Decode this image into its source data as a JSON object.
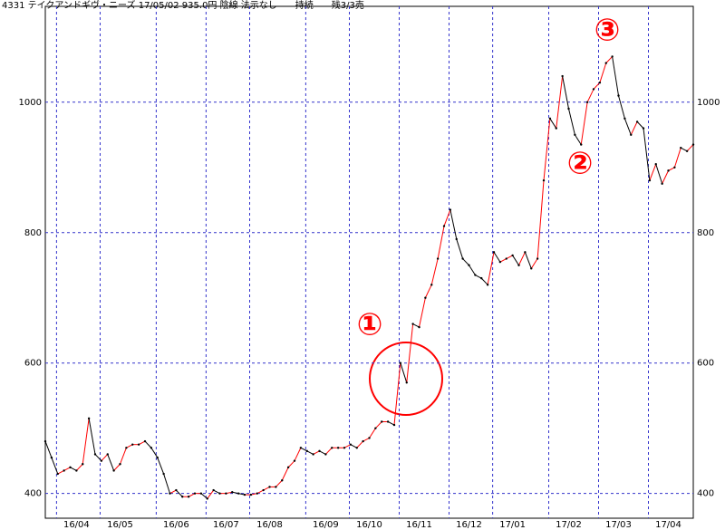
{
  "chart_data": {
    "type": "line",
    "title": "4331 テイクアンドギヴ・ニーズ 17/05/02 935.0円 陰線 法示なし　　持続　　残3/3売",
    "categories": [
      null,
      null,
      null,
      null,
      null,
      "16/04",
      null,
      null,
      null,
      null,
      null,
      null,
      "16/05",
      null,
      null,
      null,
      null,
      null,
      null,
      null,
      null,
      "16/06",
      null,
      null,
      null,
      null,
      null,
      null,
      null,
      "16/07",
      null,
      null,
      null,
      null,
      null,
      null,
      "16/08",
      null,
      null,
      null,
      null,
      null,
      null,
      null,
      null,
      "16/09",
      null,
      null,
      null,
      null,
      null,
      null,
      "16/10",
      null,
      null,
      null,
      null,
      null,
      null,
      null,
      "16/11",
      null,
      null,
      null,
      null,
      null,
      null,
      null,
      "16/12",
      null,
      null,
      null,
      null,
      null,
      null,
      "17/01",
      null,
      null,
      null,
      null,
      null,
      null,
      null,
      null,
      "17/02",
      null,
      null,
      null,
      null,
      null,
      null,
      null,
      "17/03",
      null,
      null,
      null,
      null,
      null,
      null,
      null,
      "17/04",
      null,
      null,
      null,
      null
    ],
    "values": [
      480,
      455,
      430,
      435,
      440,
      435,
      445,
      515,
      460,
      450,
      460,
      435,
      445,
      470,
      475,
      475,
      480,
      470,
      455,
      430,
      400,
      405,
      395,
      395,
      400,
      400,
      392,
      405,
      400,
      400,
      402,
      400,
      398,
      398,
      400,
      405,
      410,
      410,
      420,
      440,
      450,
      470,
      465,
      460,
      465,
      460,
      470,
      470,
      470,
      475,
      470,
      480,
      485,
      500,
      510,
      510,
      505,
      600,
      570,
      660,
      655,
      700,
      720,
      760,
      810,
      835,
      790,
      760,
      750,
      735,
      730,
      720,
      770,
      755,
      760,
      765,
      750,
      770,
      745,
      760,
      880,
      975,
      960,
      1040,
      990,
      950,
      935,
      1000,
      1020,
      1030,
      1060,
      1070,
      1010,
      975,
      950,
      970,
      960,
      880,
      905,
      875,
      895,
      900,
      930,
      925,
      935
    ],
    "up_color": "#ff0000",
    "down_color": "#000000",
    "ylim": [
      362,
      1147
    ],
    "yticks": [
      400,
      600,
      800,
      1000
    ],
    "grid": true,
    "annotations": [
      "①",
      "②",
      "③"
    ]
  }
}
